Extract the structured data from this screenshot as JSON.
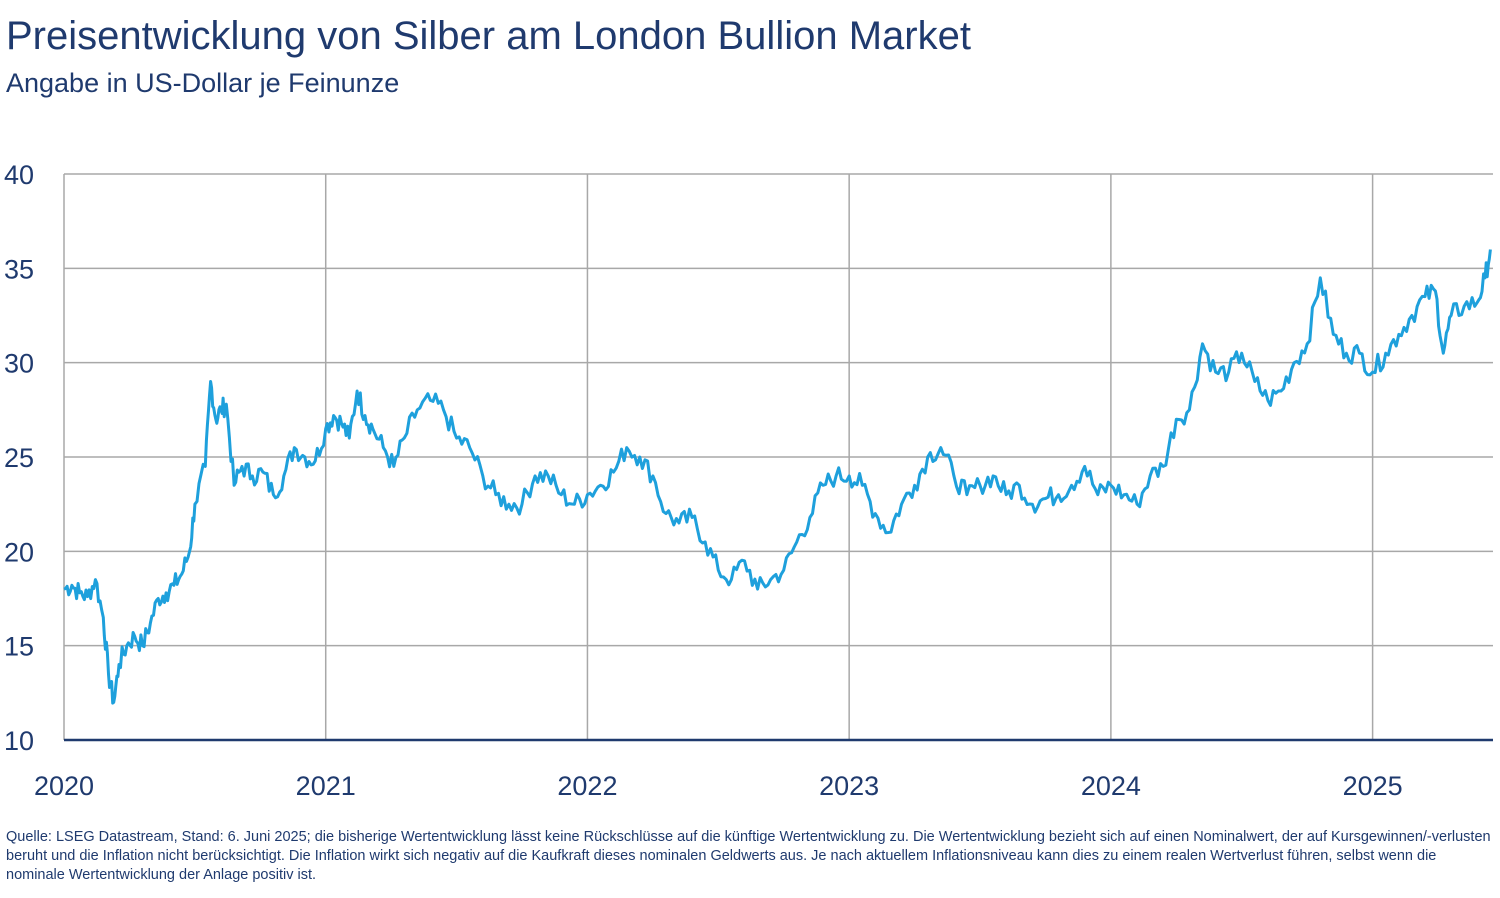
{
  "title": "Preisentwicklung von Silber am London Bullion Market",
  "subtitle": "Angabe in US-Dollar je Feinunze",
  "footnote": "Quelle: LSEG Datastream, Stand: 6. Juni 2025; die bisherige Wertentwicklung lässt keine Rückschlüsse auf die künftige Wertentwicklung zu. Die Wertentwicklung bezieht sich auf einen Nominalwert, der auf Kursgewinnen/-verlusten beruht und die Inflation nicht berücksichtigt. Die Inflation wirkt sich negativ auf die Kaufkraft dieses nominalen Geldwerts aus. Je nach aktuellem Inflationsniveau kann dies zu einem realen Wertverlust führen, selbst wenn die nominale Wertentwicklung der Anlage positiv ist.",
  "chart_data": {
    "type": "line",
    "xlabel": "",
    "ylabel": "",
    "xlim": [
      2020.0,
      2025.46
    ],
    "ylim": [
      10,
      40
    ],
    "yticks": [
      10,
      15,
      20,
      25,
      30,
      35,
      40
    ],
    "xticks": [
      2020,
      2021,
      2022,
      2023,
      2024,
      2025
    ],
    "xtick_labels": [
      "2020",
      "2021",
      "2022",
      "2023",
      "2024",
      "2025"
    ],
    "grid": true,
    "line_color": "#1ea0dc",
    "series": [
      {
        "name": "",
        "x": [
          2020.0,
          2020.03,
          2020.06,
          2020.09,
          2020.12,
          2020.15,
          2020.17,
          2020.19,
          2020.21,
          2020.24,
          2020.27,
          2020.3,
          2020.33,
          2020.36,
          2020.39,
          2020.42,
          2020.45,
          2020.48,
          2020.5,
          2020.54,
          2020.56,
          2020.58,
          2020.6,
          2020.62,
          2020.65,
          2020.68,
          2020.72,
          2020.76,
          2020.8,
          2020.84,
          2020.88,
          2020.92,
          2020.96,
          2021.0,
          2021.03,
          2021.06,
          2021.09,
          2021.12,
          2021.15,
          2021.18,
          2021.22,
          2021.26,
          2021.3,
          2021.35,
          2021.4,
          2021.45,
          2021.5,
          2021.55,
          2021.6,
          2021.65,
          2021.7,
          2021.75,
          2021.8,
          2021.85,
          2021.9,
          2021.95,
          2022.0,
          2022.05,
          2022.1,
          2022.15,
          2022.2,
          2022.25,
          2022.3,
          2022.35,
          2022.4,
          2022.45,
          2022.5,
          2022.55,
          2022.6,
          2022.65,
          2022.7,
          2022.75,
          2022.8,
          2022.85,
          2022.9,
          2022.95,
          2023.0,
          2023.05,
          2023.1,
          2023.15,
          2023.2,
          2023.25,
          2023.3,
          2023.35,
          2023.4,
          2023.45,
          2023.5,
          2023.55,
          2023.6,
          2023.65,
          2023.7,
          2023.75,
          2023.8,
          2023.85,
          2023.9,
          2023.95,
          2024.0,
          2024.05,
          2024.1,
          2024.15,
          2024.2,
          2024.25,
          2024.3,
          2024.35,
          2024.4,
          2024.45,
          2024.5,
          2024.55,
          2024.6,
          2024.65,
          2024.7,
          2024.75,
          2024.8,
          2024.85,
          2024.9,
          2024.95,
          2025.0,
          2025.05,
          2025.1,
          2025.15,
          2025.2,
          2025.24,
          2025.27,
          2025.3,
          2025.35,
          2025.4,
          2025.43,
          2025.45
        ],
        "values": [
          18.0,
          18.2,
          17.8,
          17.6,
          18.5,
          16.5,
          13.5,
          12.0,
          14.0,
          15.0,
          15.5,
          15.0,
          16.2,
          17.5,
          17.8,
          18.2,
          18.8,
          20.0,
          22.5,
          24.5,
          29.0,
          27.0,
          27.5,
          27.8,
          23.5,
          24.5,
          24.0,
          24.2,
          23.0,
          24.0,
          25.5,
          25.0,
          24.8,
          26.5,
          27.2,
          26.8,
          26.0,
          28.5,
          27.2,
          26.5,
          25.5,
          24.5,
          26.0,
          27.5,
          28.0,
          27.5,
          26.0,
          25.5,
          24.0,
          23.0,
          22.5,
          22.5,
          24.0,
          24.0,
          23.0,
          22.5,
          23.0,
          23.5,
          24.2,
          25.5,
          25.0,
          24.0,
          22.0,
          21.5,
          21.8,
          20.5,
          19.0,
          18.5,
          19.5,
          18.0,
          18.5,
          19.0,
          20.5,
          21.8,
          23.5,
          24.0,
          24.0,
          23.5,
          22.0,
          21.0,
          22.5,
          23.5,
          25.0,
          25.5,
          24.0,
          23.0,
          23.5,
          24.0,
          23.0,
          23.5,
          22.5,
          22.8,
          23.0,
          23.5,
          24.5,
          23.0,
          23.5,
          23.0,
          22.5,
          24.0,
          24.5,
          27.0,
          27.5,
          31.0,
          29.5,
          29.5,
          30.5,
          29.0,
          28.0,
          28.5,
          30.0,
          31.0,
          34.5,
          31.5,
          30.5,
          30.5,
          29.5,
          30.5,
          31.5,
          32.5,
          33.5,
          33.8,
          30.5,
          32.5,
          33.0,
          33.2,
          34.5,
          36.0
        ]
      }
    ]
  }
}
